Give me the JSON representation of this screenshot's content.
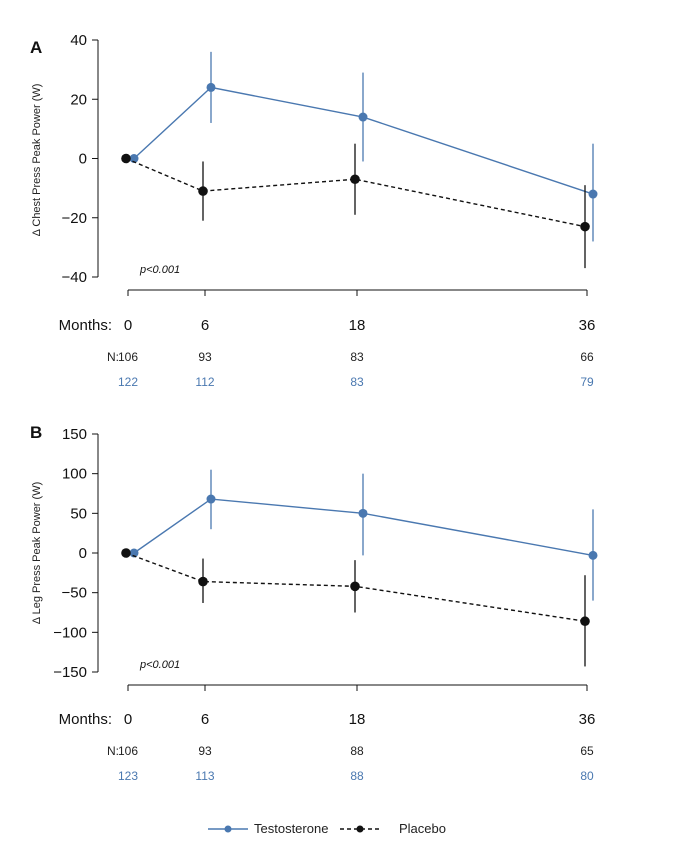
{
  "colors": {
    "testosterone": "#4a78b0",
    "placebo": "#111111"
  },
  "legend": {
    "testosterone": "Testosterone",
    "placebo": "Placebo"
  },
  "chart_data": [
    {
      "type": "line",
      "panel": "A",
      "ylabel": "Δ Chest Press Peak Power (W)",
      "ylim": [
        -40,
        40
      ],
      "yticks": [
        -40,
        -20,
        0,
        20,
        40
      ],
      "xlabel": "Months:",
      "x": [
        0,
        6,
        18,
        36
      ],
      "p_value": "p<0.001",
      "n_label": "N:",
      "series": [
        {
          "name": "Testosterone",
          "values": [
            0,
            24,
            14,
            -12
          ],
          "lower": [
            0,
            12,
            -1,
            -28
          ],
          "upper": [
            0,
            36,
            29,
            5
          ],
          "n": [
            "122",
            "112",
            "83",
            "79"
          ]
        },
        {
          "name": "Placebo",
          "values": [
            0,
            -11,
            -7,
            -23
          ],
          "lower": [
            0,
            -21,
            -19,
            -37
          ],
          "upper": [
            0,
            -1,
            5,
            -9
          ],
          "n": [
            "106",
            "93",
            "83",
            "66"
          ]
        }
      ]
    },
    {
      "type": "line",
      "panel": "B",
      "ylabel": "Δ Leg Press Peak Power (W)",
      "ylim": [
        -150,
        150
      ],
      "yticks": [
        -150,
        -100,
        -50,
        0,
        50,
        100,
        150
      ],
      "xlabel": "Months:",
      "x": [
        0,
        6,
        18,
        36
      ],
      "p_value": "p<0.001",
      "n_label": "N:",
      "series": [
        {
          "name": "Testosterone",
          "values": [
            0,
            68,
            50,
            -3
          ],
          "lower": [
            0,
            30,
            -3,
            -60
          ],
          "upper": [
            0,
            105,
            100,
            55
          ],
          "n": [
            "123",
            "113",
            "88",
            "80"
          ]
        },
        {
          "name": "Placebo",
          "values": [
            0,
            -36,
            -42,
            -86
          ],
          "lower": [
            0,
            -63,
            -75,
            -143
          ],
          "upper": [
            0,
            -7,
            -9,
            -28
          ],
          "n": [
            "106",
            "93",
            "88",
            "65"
          ]
        }
      ]
    }
  ]
}
